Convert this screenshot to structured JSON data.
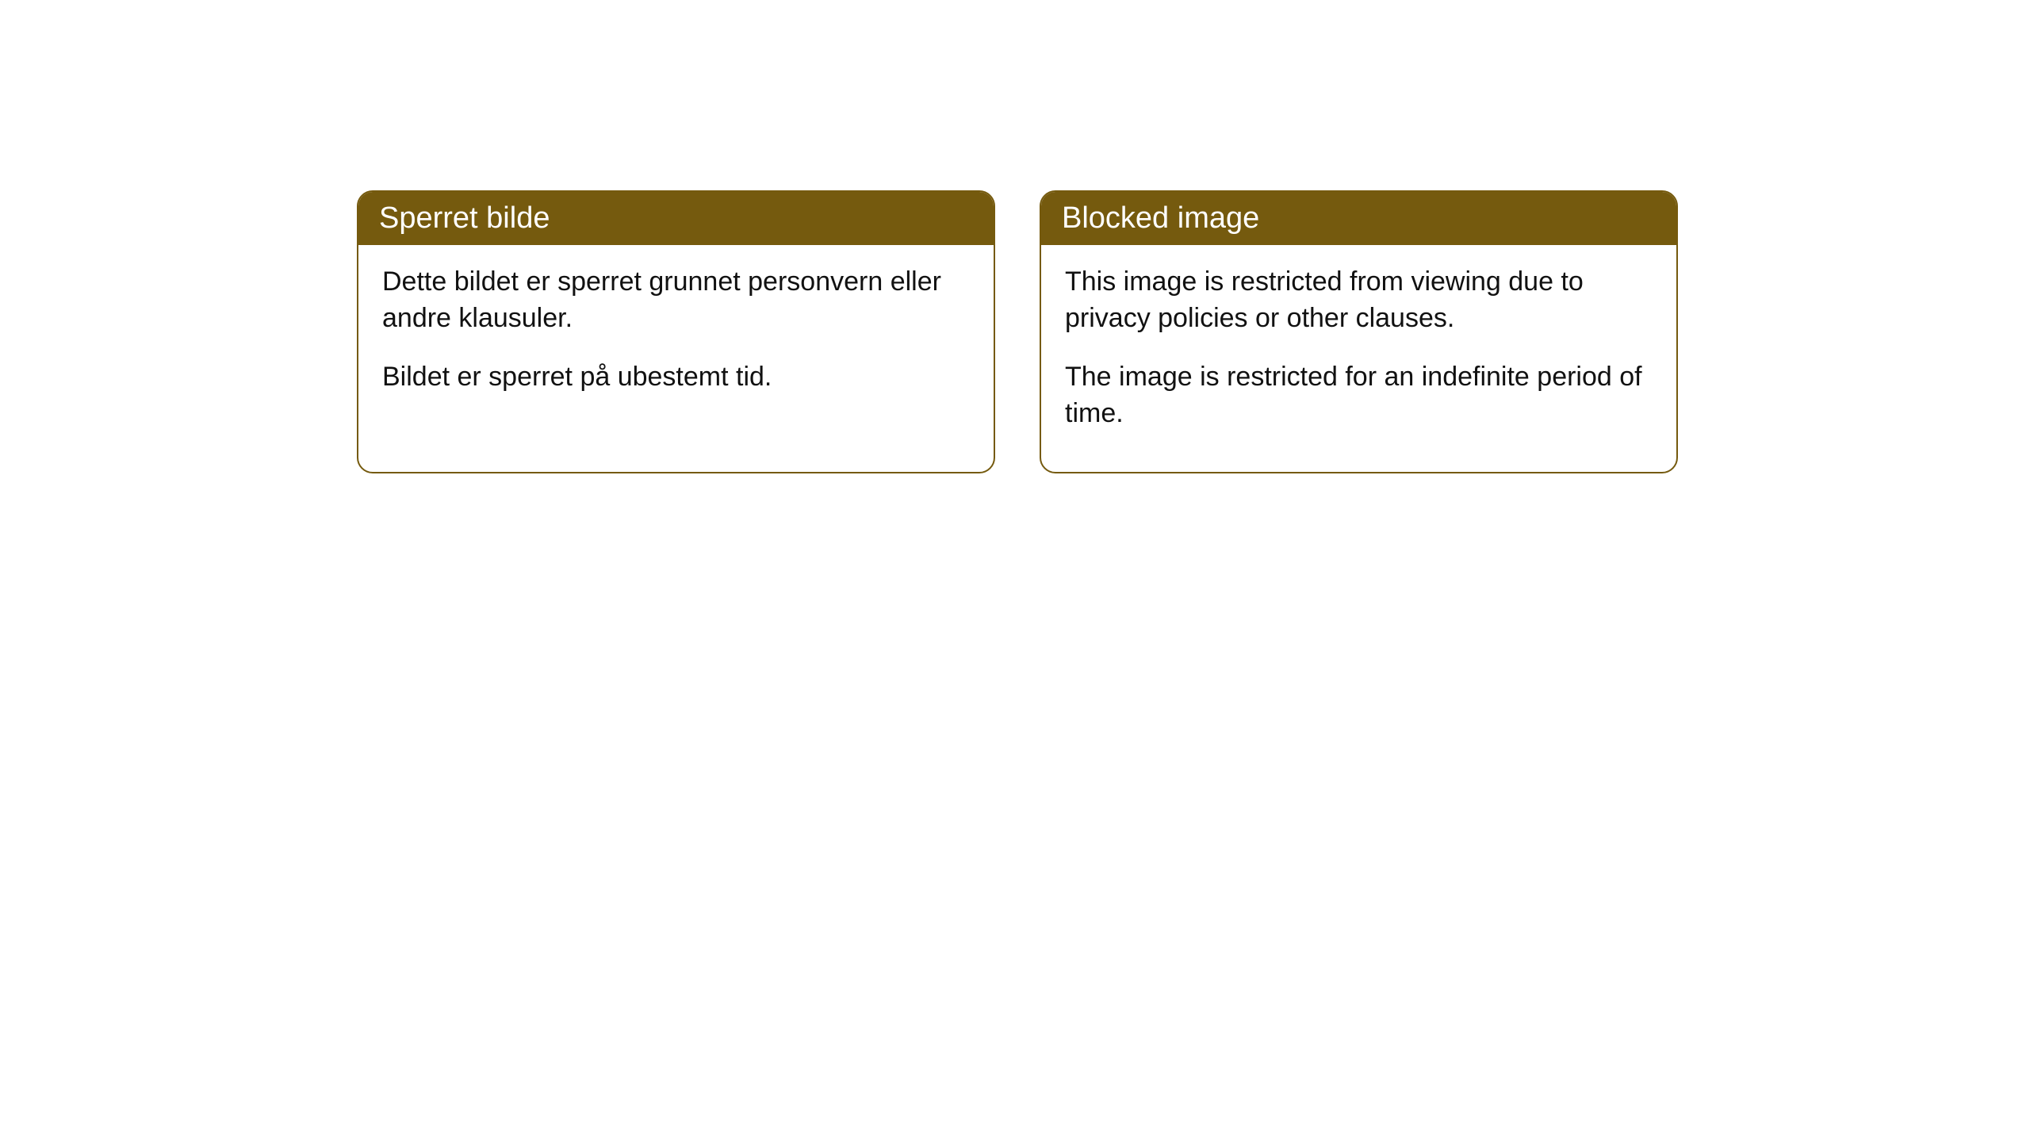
{
  "cards": [
    {
      "title": "Sperret bilde",
      "paragraph1": "Dette bildet er sperret grunnet personvern eller andre klausuler.",
      "paragraph2": "Bildet er sperret på ubestemt tid."
    },
    {
      "title": "Blocked image",
      "paragraph1": "This image is restricted from viewing due to privacy policies or other clauses.",
      "paragraph2": "The image is restricted for an indefinite period of time."
    }
  ],
  "styling": {
    "header_background": "#755a0e",
    "header_text_color": "#ffffff",
    "border_color": "#755a0e",
    "body_text_color": "#111111",
    "card_background": "#ffffff",
    "border_radius": 20,
    "header_fontsize": 38,
    "body_fontsize": 34
  }
}
